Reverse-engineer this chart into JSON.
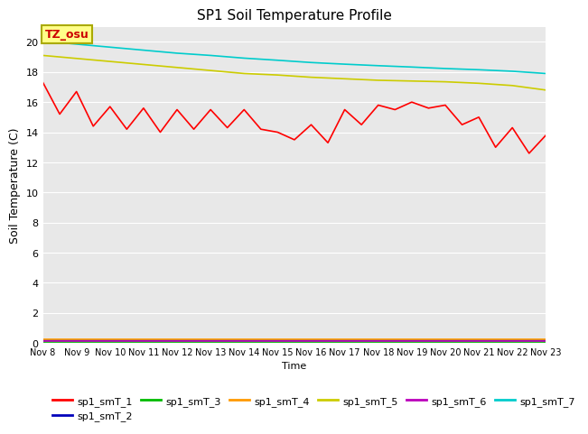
{
  "title": "SP1 Soil Temperature Profile",
  "xlabel": "Time",
  "ylabel": "Soil Temperature (C)",
  "ylim": [
    0,
    21
  ],
  "yticks": [
    0,
    2,
    4,
    6,
    8,
    10,
    12,
    14,
    16,
    18,
    20
  ],
  "x_tick_labels": [
    "Nov 8",
    "Nov 9",
    "Nov 10",
    "Nov 11",
    "Nov 12",
    "Nov 13",
    "Nov 14",
    "Nov 15",
    "Nov 16",
    "Nov 17",
    "Nov 18",
    "Nov 19",
    "Nov 20",
    "Nov 21",
    "Nov 22",
    "Nov 23"
  ],
  "tz_label": "TZ_osu",
  "bg_color": "#e8e8e8",
  "legend": [
    {
      "label": "sp1_smT_1",
      "color": "#ff0000"
    },
    {
      "label": "sp1_smT_2",
      "color": "#0000bb"
    },
    {
      "label": "sp1_smT_3",
      "color": "#00bb00"
    },
    {
      "label": "sp1_smT_4",
      "color": "#ff9900"
    },
    {
      "label": "sp1_smT_5",
      "color": "#cccc00"
    },
    {
      "label": "sp1_smT_6",
      "color": "#bb00bb"
    },
    {
      "label": "sp1_smT_7",
      "color": "#00cccc"
    }
  ],
  "series": {
    "sp1_smT_1": {
      "color": "#ff0000",
      "x": [
        0,
        0.5,
        1,
        1.5,
        2,
        2.5,
        3,
        3.5,
        4,
        4.5,
        5,
        5.5,
        6,
        6.5,
        7,
        7.5,
        8,
        8.5,
        9,
        9.5,
        10,
        10.5,
        11,
        11.5,
        12,
        12.5,
        13,
        13.5,
        14,
        14.5,
        15
      ],
      "y": [
        17.3,
        15.2,
        16.7,
        14.4,
        15.7,
        14.2,
        15.6,
        14.0,
        15.5,
        14.2,
        15.5,
        14.3,
        15.5,
        14.2,
        14.0,
        13.5,
        14.5,
        13.3,
        15.5,
        14.5,
        15.8,
        15.5,
        16.0,
        15.6,
        15.8,
        14.5,
        15.0,
        13.0,
        14.3,
        12.6,
        13.8
      ]
    },
    "sp1_smT_2": {
      "color": "#0000bb",
      "x": [
        0,
        15
      ],
      "y": [
        0.18,
        0.18
      ]
    },
    "sp1_smT_3": {
      "color": "#00bb00",
      "x": [
        0,
        15
      ],
      "y": [
        0.05,
        0.05
      ]
    },
    "sp1_smT_4": {
      "color": "#ff9900",
      "x": [
        0,
        1,
        2,
        3,
        4,
        5,
        6,
        7,
        8,
        9,
        10,
        11,
        12,
        13,
        14,
        15
      ],
      "y": [
        0.22,
        0.22,
        0.22,
        0.22,
        0.22,
        0.22,
        0.22,
        0.22,
        0.22,
        0.22,
        0.22,
        0.22,
        0.22,
        0.22,
        0.22,
        0.22
      ]
    },
    "sp1_smT_5": {
      "color": "#cccc00",
      "x": [
        0,
        1,
        2,
        3,
        4,
        5,
        6,
        7,
        8,
        9,
        10,
        11,
        12,
        13,
        14,
        15
      ],
      "y": [
        19.1,
        18.9,
        18.7,
        18.5,
        18.3,
        18.1,
        17.9,
        17.8,
        17.65,
        17.55,
        17.45,
        17.4,
        17.35,
        17.25,
        17.1,
        16.8
      ]
    },
    "sp1_smT_6": {
      "color": "#bb00bb",
      "x": [
        0,
        15
      ],
      "y": [
        0.12,
        0.12
      ]
    },
    "sp1_smT_7": {
      "color": "#00cccc",
      "x": [
        0,
        1,
        2,
        3,
        4,
        5,
        6,
        7,
        8,
        9,
        10,
        11,
        12,
        13,
        14,
        15
      ],
      "y": [
        20.05,
        19.85,
        19.65,
        19.45,
        19.25,
        19.1,
        18.92,
        18.78,
        18.63,
        18.52,
        18.42,
        18.33,
        18.23,
        18.15,
        18.05,
        17.9
      ]
    }
  }
}
